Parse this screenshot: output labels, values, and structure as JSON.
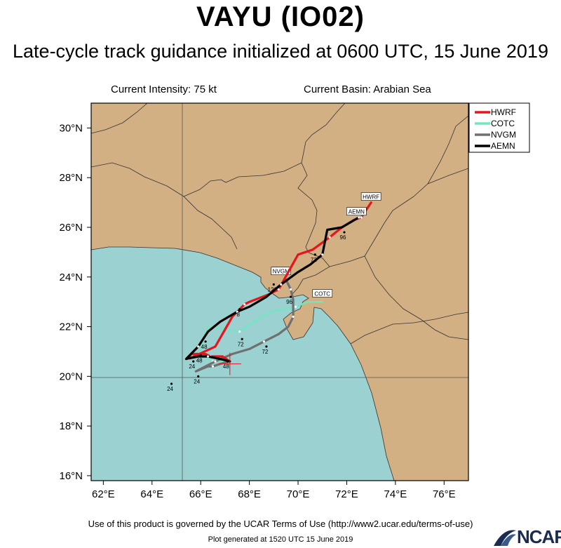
{
  "title": "VAYU (IO02)",
  "subtitle": "Late-cycle track guidance initialized at 0600 UTC, 15 June 2019",
  "info": {
    "intensity": "Current Intensity: 75 kt",
    "basin": "Current Basin: Arabian Sea"
  },
  "footer": {
    "terms": "Use of this product is governed by the UCAR Terms of Use (http://www2.ucar.edu/terms-of-use)",
    "generated": "Plot generated at 1520 UTC   15 June 2019",
    "logo": "NCAR"
  },
  "colors": {
    "land": "#d2b084",
    "ocean": "#9bd1d0",
    "HWRF": "#e8141c",
    "COTC": "#6fe8c0",
    "NVGM": "#707070",
    "AEMN": "#000000"
  },
  "chart_data": {
    "type": "map-track",
    "xlim": [
      61.5,
      77
    ],
    "ylim": [
      15.8,
      31
    ],
    "x_ticks": [
      {
        "v": 62,
        "label": "62°E"
      },
      {
        "v": 64,
        "label": "64°E"
      },
      {
        "v": 66,
        "label": "66°E"
      },
      {
        "v": 68,
        "label": "68°E"
      },
      {
        "v": 70,
        "label": "70°E"
      },
      {
        "v": 72,
        "label": "72°E"
      },
      {
        "v": 74,
        "label": "74°E"
      },
      {
        "v": 76,
        "label": "76°E"
      }
    ],
    "y_ticks": [
      {
        "v": 16,
        "label": "16°N"
      },
      {
        "v": 18,
        "label": "18°N"
      },
      {
        "v": 20,
        "label": "20°N"
      },
      {
        "v": 22,
        "label": "22°N"
      },
      {
        "v": 24,
        "label": "24°N"
      },
      {
        "v": 26,
        "label": "26°N"
      },
      {
        "v": 28,
        "label": "28°N"
      },
      {
        "v": 30,
        "label": "30°N"
      }
    ],
    "grid_lines": {
      "lon": [
        65
      ],
      "lat": [
        20
      ]
    },
    "current_position": {
      "lon": 67.2,
      "lat": 20.5
    },
    "legend": [
      "HWRF",
      "COTC",
      "NVGM",
      "AEMN"
    ],
    "series": [
      {
        "name": "HWRF",
        "points": [
          [
            67.2,
            20.6
          ],
          [
            66.9,
            20.8
          ],
          [
            66.4,
            20.8
          ],
          [
            66.2,
            20.9
          ],
          [
            65.6,
            20.9
          ],
          [
            65.5,
            20.7
          ],
          [
            66.6,
            21.2
          ],
          [
            67.3,
            22.4
          ],
          [
            67.8,
            22.9
          ],
          [
            68.0,
            23.0
          ],
          [
            68.8,
            23.3
          ],
          [
            69.2,
            23.5
          ],
          [
            70.0,
            24.9
          ],
          [
            70.6,
            25.1
          ],
          [
            71.3,
            25.6
          ],
          [
            71.8,
            26.0
          ],
          [
            72.3,
            26.3
          ],
          [
            72.6,
            26.4
          ],
          [
            73.0,
            27.0
          ]
        ],
        "time_labels": [
          {
            "lon": 66.0,
            "lat": 20.85,
            "text": "48"
          }
        ],
        "end_label": {
          "text": "HWRF",
          "lon": 73.0,
          "lat": 27.2
        }
      },
      {
        "name": "COTC",
        "points": [
          [
            67.2,
            20.6
          ],
          [
            66.8,
            20.6
          ],
          [
            66.5,
            20.6
          ],
          [
            66.3,
            20.7
          ],
          [
            66.0,
            21.0
          ],
          [
            66.1,
            21.5
          ],
          [
            66.3,
            22.0
          ],
          [
            67.0,
            21.9
          ],
          [
            67.6,
            21.8
          ],
          [
            68.2,
            22.2
          ],
          [
            68.9,
            22.6
          ],
          [
            69.9,
            22.8
          ],
          [
            70.4,
            23.0
          ],
          [
            71.0,
            23.0
          ]
        ],
        "time_labels": [
          {
            "lon": 66.2,
            "lat": 21.4,
            "text": "48"
          },
          {
            "lon": 67.7,
            "lat": 21.5,
            "text": "72"
          },
          {
            "lon": 64.8,
            "lat": 19.7,
            "text": "24"
          }
        ],
        "end_label": {
          "text": "COTC",
          "lon": 71.0,
          "lat": 23.3
        }
      },
      {
        "name": "NVGM",
        "points": [
          [
            67.2,
            20.6
          ],
          [
            66.8,
            20.5
          ],
          [
            66.5,
            20.4
          ],
          [
            66.3,
            20.4
          ],
          [
            65.8,
            20.2
          ],
          [
            66.6,
            20.6
          ],
          [
            67.3,
            20.9
          ],
          [
            68.0,
            21.1
          ],
          [
            68.6,
            21.4
          ],
          [
            69.2,
            21.7
          ],
          [
            69.6,
            22.0
          ],
          [
            69.8,
            22.4
          ],
          [
            69.8,
            22.8
          ],
          [
            69.8,
            23.1
          ],
          [
            69.7,
            23.5
          ],
          [
            69.6,
            23.7
          ],
          [
            69.5,
            23.9
          ]
        ],
        "time_labels": [
          {
            "lon": 65.9,
            "lat": 20.0,
            "text": "24"
          },
          {
            "lon": 67.1,
            "lat": 20.6,
            "text": "48"
          },
          {
            "lon": 68.7,
            "lat": 21.2,
            "text": "72"
          },
          {
            "lon": 69.7,
            "lat": 23.2,
            "text": "96"
          },
          {
            "lon": 69.0,
            "lat": 23.7,
            "text": "120"
          }
        ],
        "end_label": {
          "text": "NVGM",
          "lon": 69.3,
          "lat": 24.2
        }
      },
      {
        "name": "AEMN",
        "points": [
          [
            67.2,
            20.6
          ],
          [
            66.8,
            20.7
          ],
          [
            66.3,
            20.8
          ],
          [
            65.9,
            20.8
          ],
          [
            65.4,
            20.7
          ],
          [
            65.9,
            21.2
          ],
          [
            66.3,
            21.8
          ],
          [
            66.8,
            22.2
          ],
          [
            67.5,
            22.6
          ],
          [
            68.0,
            22.8
          ],
          [
            68.7,
            23.2
          ],
          [
            69.3,
            23.7
          ],
          [
            70.0,
            24.2
          ],
          [
            70.5,
            24.5
          ],
          [
            71.0,
            24.9
          ],
          [
            71.2,
            25.9
          ],
          [
            71.8,
            26.0
          ],
          [
            72.5,
            26.4
          ]
        ],
        "time_labels": [
          {
            "lon": 65.7,
            "lat": 20.6,
            "text": "24"
          },
          {
            "lon": 67.6,
            "lat": 22.7,
            "text": "8"
          },
          {
            "lon": 71.9,
            "lat": 25.8,
            "text": "96"
          },
          {
            "lon": 70.7,
            "lat": 24.9,
            "text": "72"
          }
        ],
        "end_label": {
          "text": "AEMN",
          "lon": 72.4,
          "lat": 26.6
        }
      }
    ]
  }
}
